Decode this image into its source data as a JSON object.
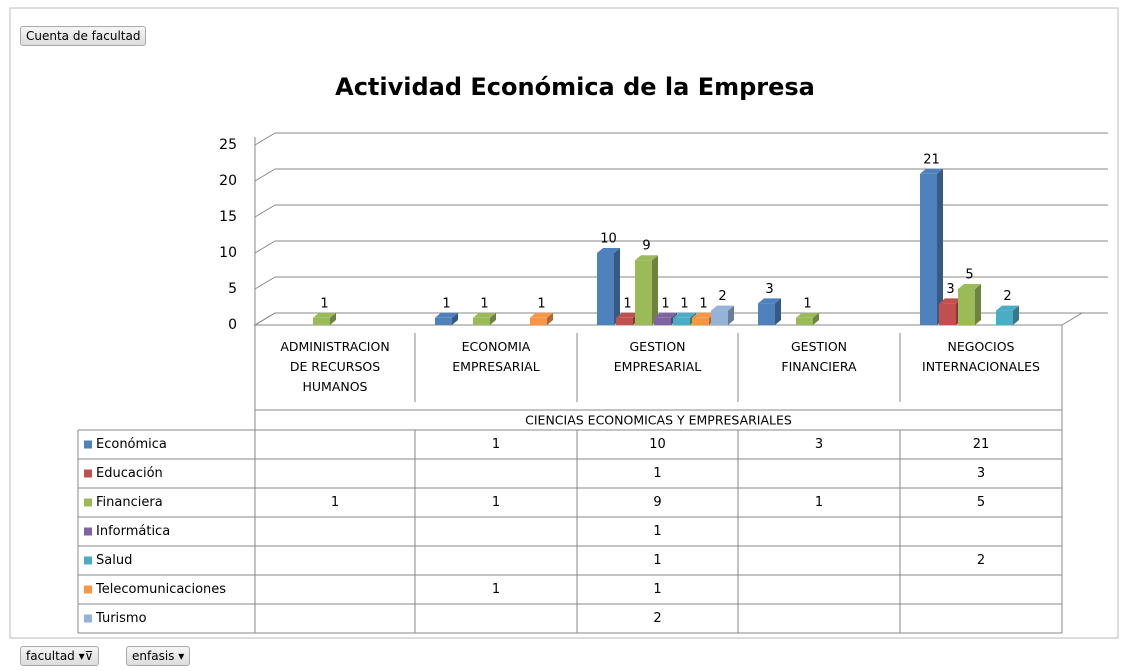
{
  "buttons": {
    "value_field": "Cuenta de facultad",
    "row_field": "facultad",
    "series_field": "enfasis"
  },
  "chart_data": {
    "type": "bar",
    "title": "Actividad Económica de la Empresa",
    "group": "CIENCIAS ECONOMICAS Y EMPRESARIALES",
    "categories": [
      "ADMINISTRACION DE RECURSOS HUMANOS",
      "ECONOMIA EMPRESARIAL",
      "GESTION EMPRESARIAL",
      "GESTION FINANCIERA",
      "NEGOCIOS INTERNACIONALES"
    ],
    "series": [
      {
        "name": "Económica",
        "color": "#4f81bd",
        "values": [
          null,
          1,
          10,
          3,
          21
        ]
      },
      {
        "name": "Educación",
        "color": "#c0504d",
        "values": [
          null,
          null,
          1,
          null,
          3
        ]
      },
      {
        "name": "Financiera",
        "color": "#9bbb59",
        "values": [
          1,
          1,
          9,
          1,
          5
        ]
      },
      {
        "name": "Informática",
        "color": "#8064a2",
        "values": [
          null,
          null,
          1,
          null,
          null
        ]
      },
      {
        "name": "Salud",
        "color": "#4bacc6",
        "values": [
          null,
          null,
          1,
          null,
          2
        ]
      },
      {
        "name": "Telecomunicaciones",
        "color": "#f79646",
        "values": [
          null,
          1,
          1,
          null,
          null
        ]
      },
      {
        "name": "Turismo",
        "color": "#95b3d7",
        "values": [
          null,
          null,
          2,
          null,
          null
        ]
      }
    ],
    "ylim": [
      0,
      25
    ],
    "yticks": [
      0,
      5,
      10,
      15,
      20,
      25
    ],
    "grid": true
  }
}
